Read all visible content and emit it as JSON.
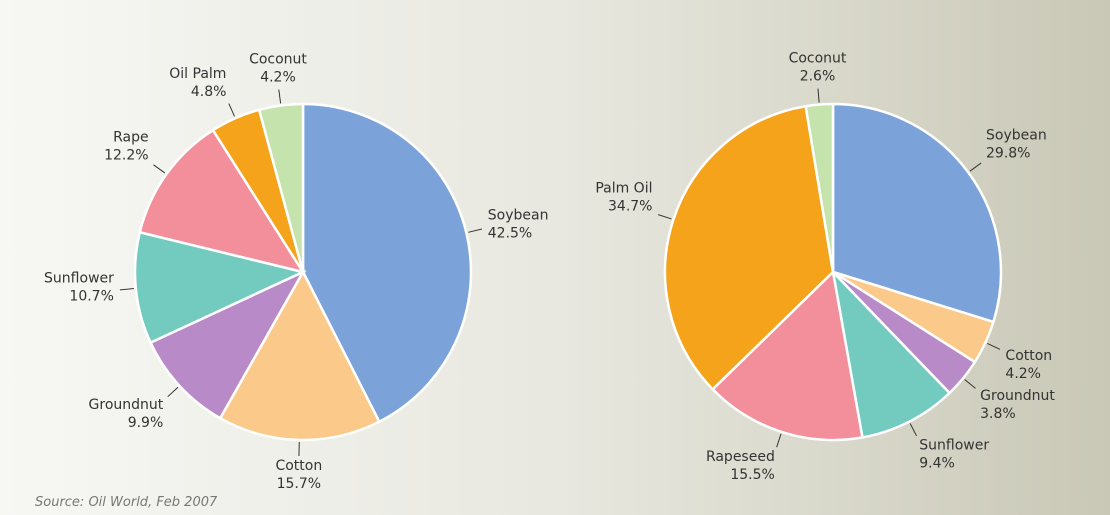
{
  "source": "Source: Oil World, Feb 2007",
  "chart_data": [
    {
      "type": "pie",
      "categories": [
        "Soybean",
        "Cotton",
        "Groundnut",
        "Sunflower",
        "Rape",
        "Oil Palm",
        "Coconut"
      ],
      "values": [
        42.5,
        15.7,
        9.9,
        10.7,
        12.2,
        4.8,
        4.2
      ],
      "value_labels": [
        "42.5%",
        "15.7%",
        "9.9%",
        "10.7%",
        "12.2%",
        "4.8%",
        "4.2%"
      ],
      "colors": [
        "#7ba3d9",
        "#fbc98a",
        "#b98ac8",
        "#73cbbf",
        "#f28f9a",
        "#f5a31a",
        "#c5e3ad"
      ]
    },
    {
      "type": "pie",
      "categories": [
        "Soybean",
        "Cotton",
        "Groundnut",
        "Sunflower",
        "Rapeseed",
        "Palm Oil",
        "Coconut"
      ],
      "values": [
        29.8,
        4.2,
        3.8,
        9.4,
        15.5,
        34.7,
        2.6
      ],
      "value_labels": [
        "29.8%",
        "4.2%",
        "3.8%",
        "9.4%",
        "15.5%",
        "34.7%",
        "2.6%"
      ],
      "colors": [
        "#7ba3d9",
        "#fbc98a",
        "#b98ac8",
        "#73cbbf",
        "#f28f9a",
        "#f5a31a",
        "#c5e3ad"
      ]
    }
  ]
}
